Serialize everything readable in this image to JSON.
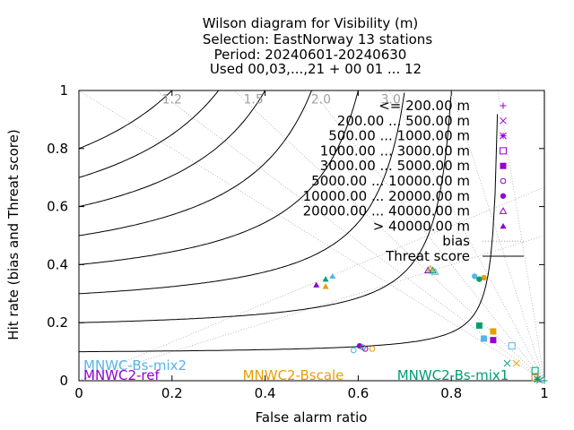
{
  "chart_data": {
    "type": "scatter",
    "title": [
      "Wilson diagram  for Visibility (m)",
      "Selection: EastNorway     13 stations",
      "Period: 20240601-20240630",
      "Used 00,03,...,21 + 00 01 ... 12"
    ],
    "xlabel": "False alarm ratio",
    "ylabel": "Hit rate (bias and Threat score)",
    "xlim": [
      0,
      1
    ],
    "ylim": [
      0,
      1
    ],
    "x_ticks": [
      "0",
      "0.2",
      "0.4",
      "0.6",
      "0.8",
      "1"
    ],
    "y_ticks": [
      "0",
      "0.2",
      "0.4",
      "0.6",
      "0.8",
      "1"
    ],
    "bias_labels": [
      "1.2",
      "1.5",
      "2.0",
      "3.0"
    ],
    "bias_lines": [
      0.5,
      0.667,
      1,
      1.2,
      1.5,
      2,
      3,
      5,
      10,
      1000
    ],
    "threat_score_lines": [
      0.1,
      0.2,
      0.3,
      0.4,
      0.5,
      0.6,
      0.7,
      0.8
    ],
    "legend": {
      "placement": "top-right",
      "entries": [
        {
          "label": "<= 200.00 m",
          "marker": "plus",
          "color": "#9400d3"
        },
        {
          "label": "200.00 ... 500.00 m",
          "marker": "cross",
          "color": "#9400d3"
        },
        {
          "label": "500.00 ... 1000.00 m",
          "marker": "star",
          "color": "#9400d3"
        },
        {
          "label": "1000.00 ... 3000.00 m",
          "marker": "square-open",
          "color": "#9400d3"
        },
        {
          "label": "3000.00 ... 5000.00 m",
          "marker": "square",
          "color": "#9400d3"
        },
        {
          "label": "5000.00 ... 10000.00 m",
          "marker": "circle-open",
          "color": "#9400d3"
        },
        {
          "label": "10000.00 ... 20000.00 m",
          "marker": "circle",
          "color": "#9400d3"
        },
        {
          "label": "20000.00 ... 40000.00 m",
          "marker": "triangle-open",
          "color": "#9400d3"
        },
        {
          "label": "> 40000.00 m",
          "marker": "triangle",
          "color": "#9400d3"
        },
        {
          "label": "bias",
          "marker": "line-dotted",
          "color": "#a0a0a0"
        },
        {
          "label": "Threat score",
          "marker": "line-solid",
          "color": "#000000"
        }
      ]
    },
    "models": [
      {
        "name": "MNWC-Bs-mix2",
        "color": "#56b4e9"
      },
      {
        "name": "MNWC2-ref",
        "color": "#9400d3"
      },
      {
        "name": "MNWC2-Bscale",
        "color": "#e69f00"
      },
      {
        "name": "MNWC2-Bs-mix1",
        "color": "#009e73"
      }
    ],
    "points": [
      {
        "model": 1,
        "marker": "plus",
        "x": 1.0,
        "y": 0.0
      },
      {
        "model": 1,
        "marker": "cross",
        "x": 0.99,
        "y": 0.002
      },
      {
        "model": 1,
        "marker": "star",
        "x": 0.985,
        "y": 0.005
      },
      {
        "model": 1,
        "marker": "square-open",
        "x": 0.98,
        "y": 0.01
      },
      {
        "model": 1,
        "marker": "square",
        "x": 0.89,
        "y": 0.14
      },
      {
        "model": 1,
        "marker": "circle-open",
        "x": 0.615,
        "y": 0.11
      },
      {
        "model": 1,
        "marker": "circle",
        "x": 0.603,
        "y": 0.12
      },
      {
        "model": 1,
        "marker": "triangle-open",
        "x": 0.75,
        "y": 0.38
      },
      {
        "model": 1,
        "marker": "triangle",
        "x": 0.51,
        "y": 0.33
      },
      {
        "model": 0,
        "marker": "plus",
        "x": 1.0,
        "y": 0.0
      },
      {
        "model": 0,
        "marker": "cross",
        "x": 0.99,
        "y": 0.003
      },
      {
        "model": 0,
        "marker": "star",
        "x": 0.985,
        "y": 0.006
      },
      {
        "model": 0,
        "marker": "square-open",
        "x": 0.93,
        "y": 0.12
      },
      {
        "model": 0,
        "marker": "square",
        "x": 0.87,
        "y": 0.145
      },
      {
        "model": 0,
        "marker": "circle-open",
        "x": 0.59,
        "y": 0.105
      },
      {
        "model": 0,
        "marker": "circle",
        "x": 0.85,
        "y": 0.36
      },
      {
        "model": 0,
        "marker": "triangle-open",
        "x": 0.765,
        "y": 0.375
      },
      {
        "model": 0,
        "marker": "triangle",
        "x": 0.545,
        "y": 0.36
      },
      {
        "model": 2,
        "marker": "plus",
        "x": 1.0,
        "y": 0.0
      },
      {
        "model": 2,
        "marker": "cross",
        "x": 0.94,
        "y": 0.06
      },
      {
        "model": 2,
        "marker": "star",
        "x": 0.985,
        "y": 0.005
      },
      {
        "model": 2,
        "marker": "square-open",
        "x": 0.98,
        "y": 0.01
      },
      {
        "model": 2,
        "marker": "square",
        "x": 0.89,
        "y": 0.17
      },
      {
        "model": 2,
        "marker": "circle-open",
        "x": 0.63,
        "y": 0.11
      },
      {
        "model": 2,
        "marker": "circle",
        "x": 0.87,
        "y": 0.355
      },
      {
        "model": 2,
        "marker": "triangle-open",
        "x": 0.755,
        "y": 0.385
      },
      {
        "model": 2,
        "marker": "triangle",
        "x": 0.53,
        "y": 0.325
      },
      {
        "model": 3,
        "marker": "plus",
        "x": 1.0,
        "y": 0.0
      },
      {
        "model": 3,
        "marker": "cross",
        "x": 0.92,
        "y": 0.06
      },
      {
        "model": 3,
        "marker": "star",
        "x": 0.985,
        "y": 0.005
      },
      {
        "model": 3,
        "marker": "square-open",
        "x": 0.98,
        "y": 0.035
      },
      {
        "model": 3,
        "marker": "square",
        "x": 0.86,
        "y": 0.19
      },
      {
        "model": 3,
        "marker": "circle-open",
        "x": 0.61,
        "y": 0.115
      },
      {
        "model": 3,
        "marker": "circle",
        "x": 0.86,
        "y": 0.35
      },
      {
        "model": 3,
        "marker": "triangle-open",
        "x": 0.76,
        "y": 0.38
      },
      {
        "model": 3,
        "marker": "triangle",
        "x": 0.53,
        "y": 0.35
      }
    ]
  }
}
